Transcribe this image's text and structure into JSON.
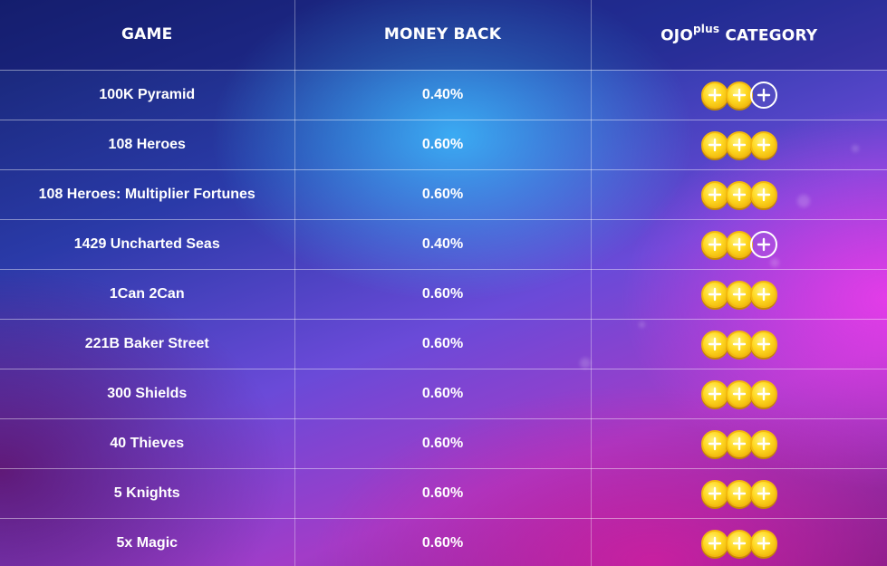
{
  "header": {
    "game": "GAME",
    "money_back": "MONEY BACK",
    "category_main": "OJO",
    "category_sup": "plus",
    "category_rest": " CATEGORY"
  },
  "rows": [
    {
      "game": "100K Pyramid",
      "money_back": "0.40%",
      "category_coins": 2
    },
    {
      "game": "108 Heroes",
      "money_back": "0.60%",
      "category_coins": 3
    },
    {
      "game": "108 Heroes: Multiplier Fortunes",
      "money_back": "0.60%",
      "category_coins": 3
    },
    {
      "game": "1429 Uncharted Seas",
      "money_back": "0.40%",
      "category_coins": 2
    },
    {
      "game": "1Can 2Can",
      "money_back": "0.60%",
      "category_coins": 3
    },
    {
      "game": "221B Baker Street",
      "money_back": "0.60%",
      "category_coins": 3
    },
    {
      "game": "300 Shields",
      "money_back": "0.60%",
      "category_coins": 3
    },
    {
      "game": "40 Thieves",
      "money_back": "0.60%",
      "category_coins": 3
    },
    {
      "game": "5 Knights",
      "money_back": "0.60%",
      "category_coins": 3
    },
    {
      "game": "5x Magic",
      "money_back": "0.60%",
      "category_coins": 3
    }
  ],
  "category_max_coins": 3,
  "colors": {
    "coin_gold": "#ffd821",
    "coin_border": "#f3b80d",
    "coin_empty_outline": "#ffffff"
  },
  "icons": {
    "coin_full": "plus-coin-icon",
    "coin_empty": "plus-coin-outline-icon"
  }
}
